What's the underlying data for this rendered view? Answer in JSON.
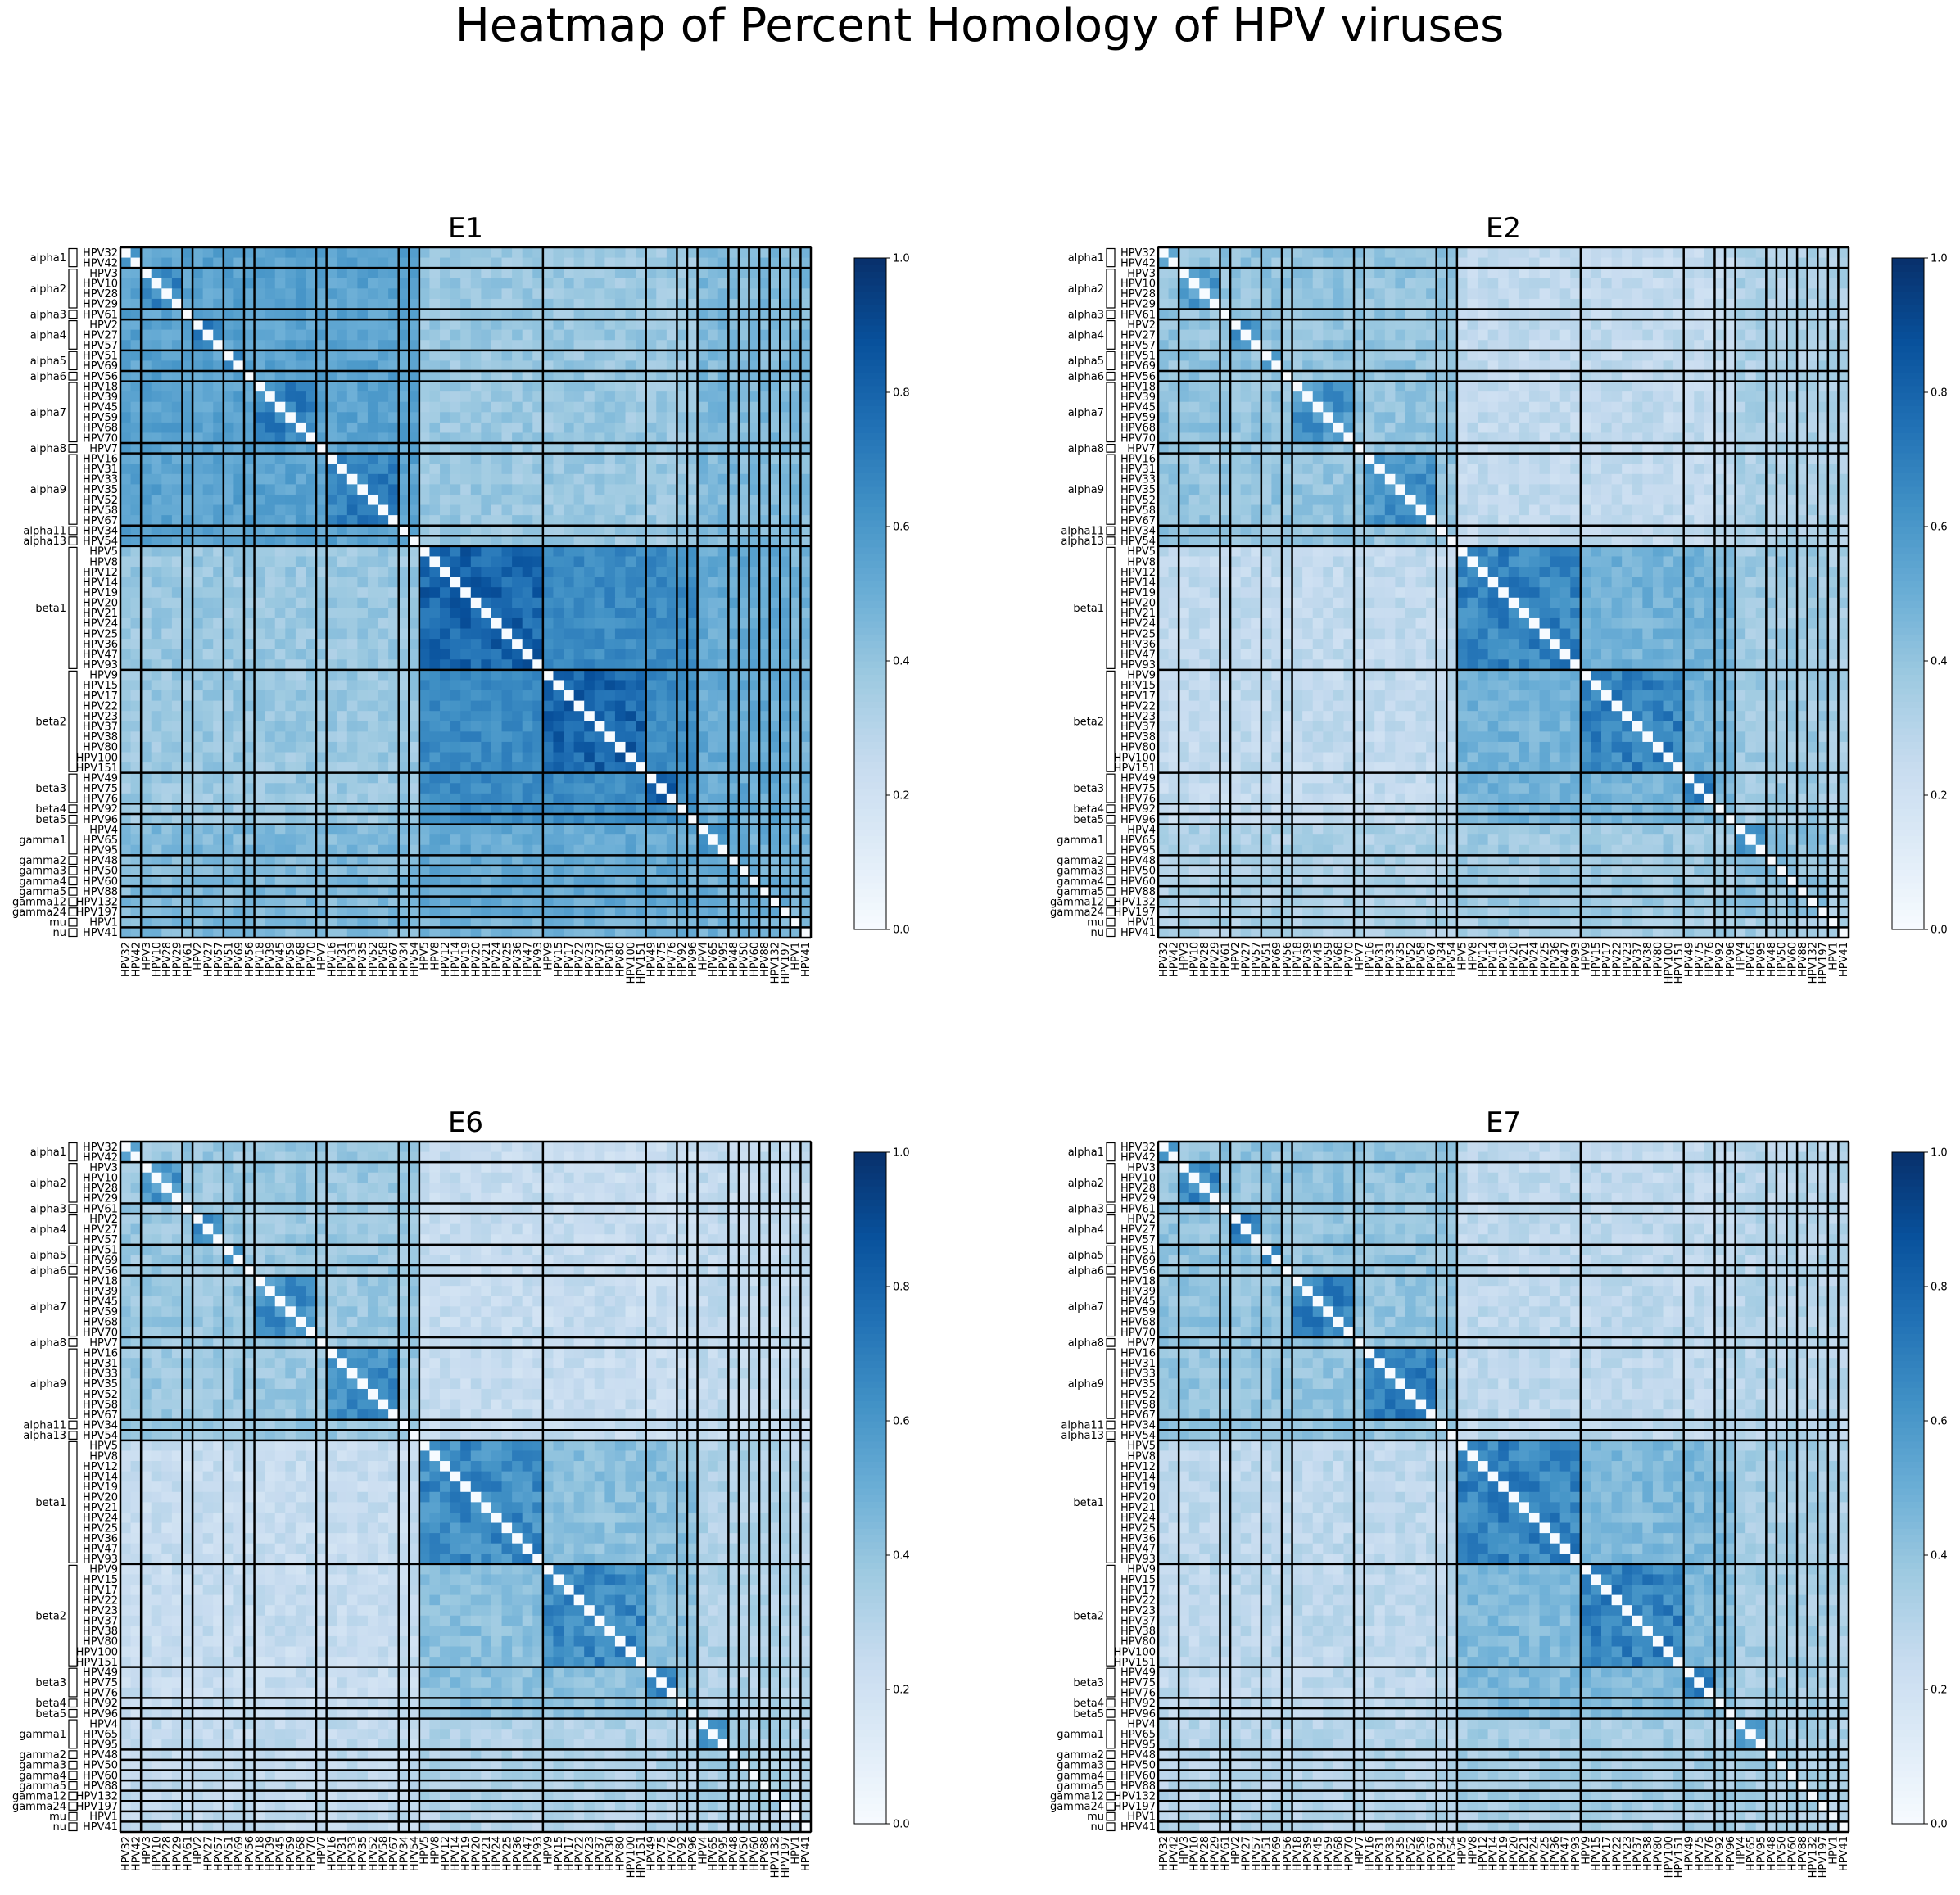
{
  "suptitle": "Heatmap of Percent Homology of HPV viruses",
  "chart_data": {
    "type": "heatmap",
    "colormap": "Blues",
    "vlim": [
      0,
      1
    ],
    "colorbar_ticks": [
      "0.0",
      "0.2",
      "0.4",
      "0.6",
      "0.8",
      "1.0"
    ],
    "diagonal_value": 0,
    "labels": [
      "HPV32",
      "HPV42",
      "HPV3",
      "HPV10",
      "HPV28",
      "HPV29",
      "HPV61",
      "HPV2",
      "HPV27",
      "HPV57",
      "HPV51",
      "HPV69",
      "HPV56",
      "HPV18",
      "HPV39",
      "HPV45",
      "HPV59",
      "HPV68",
      "HPV70",
      "HPV7",
      "HPV16",
      "HPV31",
      "HPV33",
      "HPV35",
      "HPV52",
      "HPV58",
      "HPV67",
      "HPV34",
      "HPV54",
      "HPV5",
      "HPV8",
      "HPV12",
      "HPV14",
      "HPV19",
      "HPV20",
      "HPV21",
      "HPV24",
      "HPV25",
      "HPV36",
      "HPV47",
      "HPV93",
      "HPV9",
      "HPV15",
      "HPV17",
      "HPV22",
      "HPV23",
      "HPV37",
      "HPV38",
      "HPV80",
      "HPV100",
      "HPV151",
      "HPV49",
      "HPV75",
      "HPV76",
      "HPV92",
      "HPV96",
      "HPV4",
      "HPV65",
      "HPV95",
      "HPV48",
      "HPV50",
      "HPV60",
      "HPV88",
      "HPV132",
      "HPV197",
      "HPV1",
      "HPV41"
    ],
    "groups": [
      {
        "name": "alpha1",
        "size": 2
      },
      {
        "name": "alpha2",
        "size": 4
      },
      {
        "name": "alpha3",
        "size": 1
      },
      {
        "name": "alpha4",
        "size": 3
      },
      {
        "name": "alpha5",
        "size": 2
      },
      {
        "name": "alpha6",
        "size": 1
      },
      {
        "name": "alpha7",
        "size": 6
      },
      {
        "name": "alpha8",
        "size": 1
      },
      {
        "name": "alpha9",
        "size": 7
      },
      {
        "name": "alpha11",
        "size": 1
      },
      {
        "name": "alpha13",
        "size": 1
      },
      {
        "name": "beta1",
        "size": 12
      },
      {
        "name": "beta2",
        "size": 10
      },
      {
        "name": "beta3",
        "size": 3
      },
      {
        "name": "beta4",
        "size": 1
      },
      {
        "name": "beta5",
        "size": 1
      },
      {
        "name": "gamma1",
        "size": 3
      },
      {
        "name": "gamma2",
        "size": 1
      },
      {
        "name": "gamma3",
        "size": 1
      },
      {
        "name": "gamma4",
        "size": 1
      },
      {
        "name": "gamma5",
        "size": 1
      },
      {
        "name": "gamma12",
        "size": 1
      },
      {
        "name": "gamma24",
        "size": 1
      },
      {
        "name": "mu",
        "size": 1
      },
      {
        "name": "nu",
        "size": 1
      }
    ],
    "panels": [
      {
        "title": "E1",
        "within": {
          "alpha": 0.68,
          "beta": 0.8,
          "gamma": 0.62,
          "other": 0.55
        },
        "within_genus": {
          "alpha": 0.55,
          "beta": 0.65,
          "gamma": 0.5,
          "other": 0.45
        },
        "between": {
          "alpha-beta": 0.38,
          "alpha-gamma": 0.45,
          "alpha-other": 0.45,
          "beta-gamma": 0.52,
          "beta-other": 0.48,
          "gamma-other": 0.48
        }
      },
      {
        "title": "E2",
        "within": {
          "alpha": 0.6,
          "beta": 0.68,
          "gamma": 0.62,
          "other": 0.45
        },
        "within_genus": {
          "alpha": 0.4,
          "beta": 0.48,
          "gamma": 0.42,
          "other": 0.35
        },
        "between": {
          "alpha-beta": 0.26,
          "alpha-gamma": 0.33,
          "alpha-other": 0.33,
          "beta-gamma": 0.37,
          "beta-other": 0.35,
          "gamma-other": 0.35
        }
      },
      {
        "title": "E6",
        "within": {
          "alpha": 0.62,
          "beta": 0.65,
          "gamma": 0.62,
          "other": 0.45
        },
        "within_genus": {
          "alpha": 0.38,
          "beta": 0.42,
          "gamma": 0.35,
          "other": 0.3
        },
        "between": {
          "alpha-beta": 0.24,
          "alpha-gamma": 0.26,
          "alpha-other": 0.26,
          "beta-gamma": 0.32,
          "beta-other": 0.3,
          "gamma-other": 0.3
        }
      },
      {
        "title": "E7",
        "within": {
          "alpha": 0.68,
          "beta": 0.68,
          "gamma": 0.58,
          "other": 0.45
        },
        "within_genus": {
          "alpha": 0.4,
          "beta": 0.45,
          "gamma": 0.35,
          "other": 0.3
        },
        "between": {
          "alpha-beta": 0.27,
          "alpha-gamma": 0.3,
          "alpha-other": 0.3,
          "beta-gamma": 0.35,
          "beta-other": 0.33,
          "gamma-other": 0.33
        }
      }
    ]
  }
}
